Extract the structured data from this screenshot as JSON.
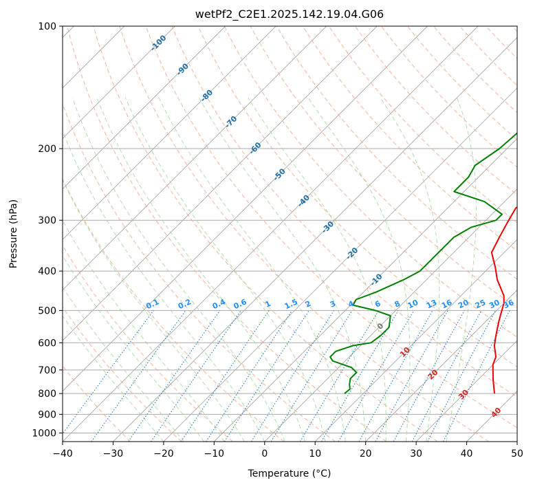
{
  "chart_data": {
    "type": "line",
    "subtype": "skew-t log-p",
    "title": "wetPf2_C2E1.2025.142.19.04.G06",
    "xlabel": "Temperature (°C)",
    "ylabel": "Pressure (hPa)",
    "xlim": [
      -40,
      50
    ],
    "ylim": [
      1050,
      100
    ],
    "y_scale": "log",
    "grid": true,
    "x_ticks": [
      -40,
      -30,
      -20,
      -10,
      0,
      10,
      20,
      30,
      40,
      50
    ],
    "y_ticks": [
      100,
      200,
      300,
      400,
      500,
      600,
      700,
      800,
      900,
      1000
    ],
    "series": [
      {
        "color": "#ee0000",
        "points": [
          [
            36,
            800
          ],
          [
            33,
            740
          ],
          [
            30,
            680
          ],
          [
            29,
            650
          ],
          [
            26.5,
            610
          ],
          [
            25,
            580
          ],
          [
            23.5,
            550
          ],
          [
            22.5,
            530
          ],
          [
            21.5,
            510
          ],
          [
            20,
            480
          ],
          [
            18.5,
            460
          ],
          [
            14,
            420
          ],
          [
            11,
            390
          ],
          [
            7.5,
            360
          ],
          [
            6,
            330
          ],
          [
            4.5,
            300
          ],
          [
            3.5,
            280
          ],
          [
            4.5,
            260
          ],
          [
            6,
            240
          ],
          [
            6.5,
            220
          ],
          [
            6,
            200
          ],
          [
            5,
            180
          ],
          [
            3.5,
            160
          ],
          [
            1.5,
            140
          ],
          [
            0.5,
            125
          ],
          [
            0.5,
            115
          ],
          [
            0.5,
            100
          ]
        ]
      },
      {
        "color": "#008000",
        "points": [
          [
            6.3,
            800
          ],
          [
            6.5,
            780
          ],
          [
            5.5,
            760
          ],
          [
            4.5,
            735
          ],
          [
            4.5,
            710
          ],
          [
            2.5,
            690
          ],
          [
            -2.5,
            665
          ],
          [
            -3.8,
            650
          ],
          [
            -3.8,
            630
          ],
          [
            -1.5,
            610
          ],
          [
            1.5,
            600
          ],
          [
            2,
            575
          ],
          [
            2,
            550
          ],
          [
            0,
            515
          ],
          [
            -4,
            500
          ],
          [
            -9.5,
            485
          ],
          [
            -10,
            470
          ],
          [
            -7.5,
            450
          ],
          [
            -4.5,
            420
          ],
          [
            -3,
            400
          ],
          [
            -3,
            380
          ],
          [
            -3,
            355
          ],
          [
            -3,
            330
          ],
          [
            -1.5,
            312
          ],
          [
            2,
            300
          ],
          [
            2,
            290
          ],
          [
            -4,
            270
          ],
          [
            -12,
            255
          ],
          [
            -12,
            235
          ],
          [
            -13,
            220
          ],
          [
            -11.5,
            200
          ],
          [
            -11,
            180
          ],
          [
            -9,
            160
          ],
          [
            -8,
            140
          ],
          [
            -6.5,
            120
          ],
          [
            -4,
            105
          ],
          [
            -2.5,
            100
          ]
        ]
      }
    ],
    "dry_adiabats_temps_c": [
      -30,
      -20,
      -10,
      0,
      10,
      20,
      30,
      40,
      50,
      60,
      70,
      80,
      90,
      100,
      110,
      120,
      130,
      140,
      150,
      160,
      170,
      180,
      190,
      200
    ],
    "moist_adiabats_temps_c": [
      -20,
      -16,
      -12,
      -8,
      -4,
      0,
      4,
      8,
      12,
      16,
      20,
      24,
      28,
      32,
      36
    ],
    "mixing_ratio_lines": [
      0.1,
      0.2,
      0.4,
      0.6,
      1,
      1.5,
      2,
      3,
      4,
      6,
      8,
      10,
      13,
      16,
      20,
      25,
      30,
      36
    ],
    "mixing_ratio_labels": [
      "0.1",
      "0.2",
      "0.4",
      "0.6",
      "1",
      "1.5",
      "2",
      "3",
      "4",
      "6",
      "8",
      "10",
      "13",
      "16",
      "20",
      "25",
      "30",
      "36"
    ],
    "mixing_ratio_label_color": "#1f8fff",
    "isotherm_labels": [
      {
        "t": -100,
        "text": "-100",
        "color": "#1f6fa8"
      },
      {
        "t": -90,
        "text": "-90",
        "color": "#1f6fa8"
      },
      {
        "t": -80,
        "text": "-80",
        "color": "#1f6fa8"
      },
      {
        "t": -70,
        "text": "-70",
        "color": "#1f6fa8"
      },
      {
        "t": -60,
        "text": "-60",
        "color": "#1f6fa8"
      },
      {
        "t": -50,
        "text": "-50",
        "color": "#1f6fa8"
      },
      {
        "t": -40,
        "text": "-40",
        "color": "#1f6fa8"
      },
      {
        "t": -30,
        "text": "-30",
        "color": "#1f6fa8"
      },
      {
        "t": -20,
        "text": "-20",
        "color": "#1f6fa8"
      },
      {
        "t": -10,
        "text": "-10",
        "color": "#1f6fa8"
      },
      {
        "t": 0,
        "text": "0",
        "color": "#777777"
      },
      {
        "t": 10,
        "text": "10",
        "color": "#d62728"
      },
      {
        "t": 20,
        "text": "20",
        "color": "#d62728"
      },
      {
        "t": 30,
        "text": "30",
        "color": "#d62728"
      },
      {
        "t": 40,
        "text": "40",
        "color": "#d62728"
      }
    ],
    "colors": {
      "temperature": "#ee0000",
      "dewpoint": "#008000",
      "isotherm": "#a9a9a9",
      "isobar": "#a9a9a9",
      "dry_adiabat": "#f4a688",
      "moist_adiabat": "#9fd39a",
      "mixing_ratio": "#1f77d4",
      "curve": "#d9c3a5"
    }
  }
}
